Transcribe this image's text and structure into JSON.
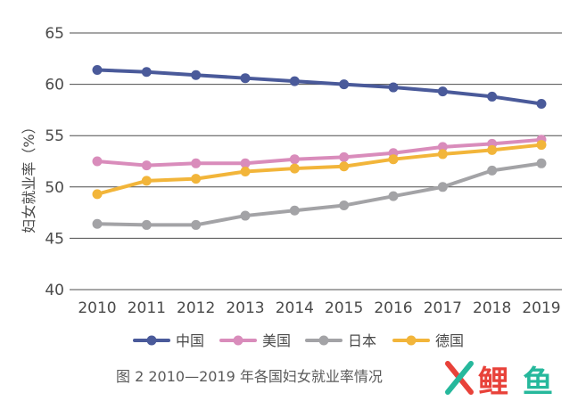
{
  "chart_data": {
    "type": "line",
    "title": "",
    "ylabel": "妇女就业率（%）",
    "xlabel": "",
    "categories": [
      "2010",
      "2011",
      "2012",
      "2013",
      "2014",
      "2015",
      "2016",
      "2017",
      "2018",
      "2019"
    ],
    "ylim": [
      40,
      65
    ],
    "yticks": [
      40,
      45,
      50,
      55,
      60,
      65
    ],
    "grid": "horizontal",
    "legend_position": "bottom",
    "series": [
      {
        "name": "中国",
        "color": "#4a5a9a",
        "values": [
          61.4,
          61.2,
          60.9,
          60.6,
          60.3,
          60.0,
          59.7,
          59.3,
          58.8,
          58.1
        ]
      },
      {
        "name": "美国",
        "color": "#d98cbb",
        "values": [
          52.5,
          52.1,
          52.3,
          52.3,
          52.7,
          52.9,
          53.3,
          53.9,
          54.2,
          54.6
        ]
      },
      {
        "name": "日本",
        "color": "#a3a3a6",
        "values": [
          46.4,
          46.3,
          46.3,
          47.2,
          47.7,
          48.2,
          49.1,
          50.0,
          51.6,
          52.3
        ]
      },
      {
        "name": "德国",
        "color": "#f2b53a",
        "values": [
          49.3,
          50.6,
          50.8,
          51.5,
          51.8,
          52.0,
          52.7,
          53.2,
          53.6,
          54.1
        ]
      }
    ]
  },
  "caption": "图 2  2010—2019 年各国妇女就业率情况",
  "watermark": {
    "text1": "鲤",
    "text2": "鱼",
    "color1": "#e8423a",
    "color2": "#26b89c",
    "icon": "x-logo-icon"
  }
}
